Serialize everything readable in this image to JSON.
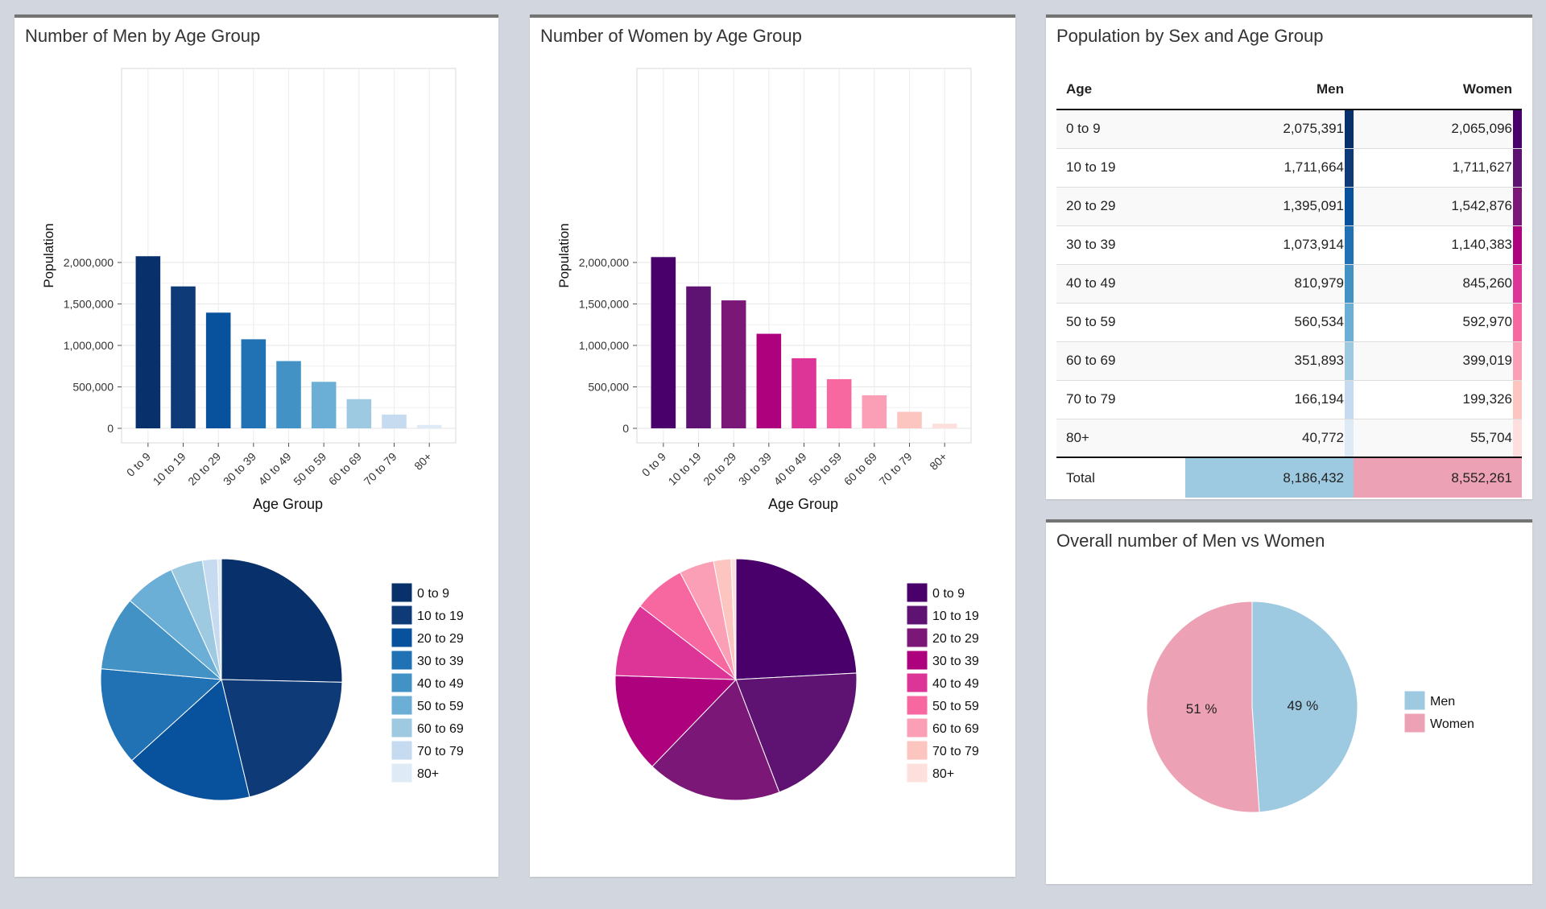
{
  "men_panel": {
    "title": "Number of Men by Age Group",
    "legend": [
      "0 to 9",
      "10 to 19",
      "20 to 29",
      "30 to 39",
      "40 to 49",
      "50 to 59",
      "60 to 69",
      "70 to 79",
      "80+"
    ]
  },
  "women_panel": {
    "title": "Number of Women by Age Group",
    "legend": [
      "0 to 9",
      "10 to 19",
      "20 to 29",
      "30 to 39",
      "40 to 49",
      "50 to 59",
      "60 to 69",
      "70 to 79",
      "80+"
    ]
  },
  "table_panel": {
    "title": "Population by Sex and Age Group",
    "headers": {
      "age": "Age",
      "men": "Men",
      "women": "Women"
    },
    "rows": [
      {
        "age": "0 to 9",
        "men": "2,075,391",
        "women": "2,065,096"
      },
      {
        "age": "10 to 19",
        "men": "1,711,664",
        "women": "1,711,627"
      },
      {
        "age": "20 to 29",
        "men": "1,395,091",
        "women": "1,542,876"
      },
      {
        "age": "30 to 39",
        "men": "1,073,914",
        "women": "1,140,383"
      },
      {
        "age": "40 to 49",
        "men": "810,979",
        "women": "845,260"
      },
      {
        "age": "50 to 59",
        "men": "560,534",
        "women": "592,970"
      },
      {
        "age": "60 to 69",
        "men": "351,893",
        "women": "399,019"
      },
      {
        "age": "70 to 79",
        "men": "166,194",
        "women": "199,326"
      },
      {
        "age": "80+",
        "men": "40,772",
        "women": "55,704"
      }
    ],
    "total": {
      "label": "Total",
      "men": "8,186,432",
      "women": "8,552,261"
    },
    "colors": {
      "men_total_bg": "#9ecae1",
      "women_total_bg": "#eda1b4"
    }
  },
  "overall_panel": {
    "title": "Overall number of Men vs Women"
  },
  "colors": {
    "men": [
      "#08306b",
      "#0e3a78",
      "#08519c",
      "#2171b5",
      "#4292c6",
      "#6baed6",
      "#9ecae1",
      "#c6dbef",
      "#deebf7"
    ],
    "women": [
      "#49006a",
      "#5e1272",
      "#7a1777",
      "#ae017e",
      "#dd3497",
      "#f768a1",
      "#fa9fb5",
      "#fcc5c0",
      "#fde0dd"
    ]
  },
  "chart_data": [
    {
      "type": "bar",
      "categories": [
        "0 to 9",
        "10 to 19",
        "20 to 29",
        "30 to 39",
        "40 to 49",
        "50 to 59",
        "60 to 69",
        "70 to 79",
        "80+"
      ],
      "values": [
        2075391,
        1711664,
        1395091,
        1073914,
        810979,
        560534,
        351893,
        166194,
        40772
      ],
      "ylabel": "Population",
      "xlabel": "Age Group",
      "yticks": [
        "0",
        "500,000",
        "1,000,000",
        "1,500,000",
        "2,000,000"
      ],
      "ylim": [
        0,
        2175000
      ],
      "grid": true
    },
    {
      "type": "pie",
      "categories": [
        "0 to 9",
        "10 to 19",
        "20 to 29",
        "30 to 39",
        "40 to 49",
        "50 to 59",
        "60 to 69",
        "70 to 79",
        "80+"
      ],
      "values": [
        2075391,
        1711664,
        1395091,
        1073914,
        810979,
        560534,
        351893,
        166194,
        40772
      ],
      "legend": "right"
    },
    {
      "type": "bar",
      "categories": [
        "0 to 9",
        "10 to 19",
        "20 to 29",
        "30 to 39",
        "40 to 49",
        "50 to 59",
        "60 to 69",
        "70 to 79",
        "80+"
      ],
      "values": [
        2065096,
        1711627,
        1542876,
        1140383,
        845260,
        592970,
        399019,
        199326,
        55704
      ],
      "ylabel": "Population",
      "xlabel": "Age Group",
      "yticks": [
        "0",
        "500,000",
        "1,000,000",
        "1,500,000",
        "2,000,000"
      ],
      "ylim": [
        0,
        2175000
      ],
      "grid": true
    },
    {
      "type": "pie",
      "categories": [
        "0 to 9",
        "10 to 19",
        "20 to 29",
        "30 to 39",
        "40 to 49",
        "50 to 59",
        "60 to 69",
        "70 to 79",
        "80+"
      ],
      "values": [
        2065096,
        1711627,
        1542876,
        1140383,
        845260,
        592970,
        399019,
        199326,
        55704
      ],
      "legend": "right"
    },
    {
      "type": "pie",
      "categories": [
        "Men",
        "Women"
      ],
      "values": [
        8186432,
        8552261
      ],
      "data_labels": [
        "49 %",
        "51 %"
      ],
      "colors": [
        "#9ecae1",
        "#eda1b4"
      ],
      "legend": "right"
    }
  ]
}
